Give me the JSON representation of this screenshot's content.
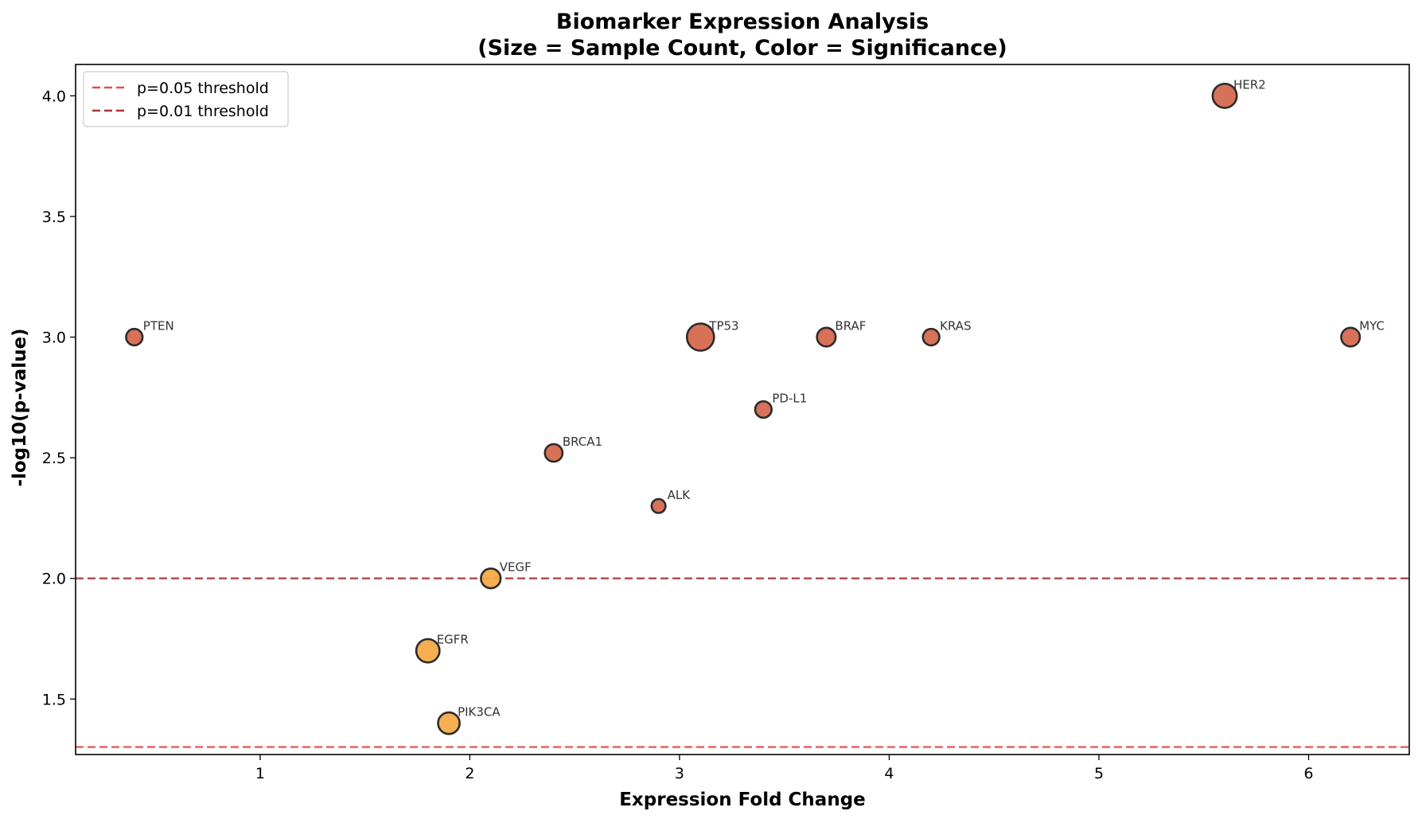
{
  "chart_data": {
    "type": "scatter",
    "title_line1": "Biomarker Expression Analysis",
    "title_line2": "(Size = Sample Count, Color = Significance)",
    "xlabel": "Expression Fold Change",
    "ylabel": "-log10(p-value)",
    "xlim": [
      0.12,
      6.48
    ],
    "ylim": [
      1.27,
      4.13
    ],
    "xticks": [
      1,
      2,
      3,
      4,
      5,
      6
    ],
    "xtick_labels": [
      "1",
      "2",
      "3",
      "4",
      "5",
      "6"
    ],
    "yticks": [
      1.5,
      2.0,
      2.5,
      3.0,
      3.5,
      4.0
    ],
    "ytick_labels": [
      "1.5",
      "2.0",
      "2.5",
      "3.0",
      "3.5",
      "4.0"
    ],
    "grid": false,
    "legend_placement": "top-left",
    "significant_color": "#d4654a",
    "moderate_color": "#f5a742",
    "edge_color": "#2b2b2b",
    "points": [
      {
        "label": "PTEN",
        "x": 0.4,
        "y": 3.0,
        "samples": 35,
        "group": "significant"
      },
      {
        "label": "TP53",
        "x": 3.1,
        "y": 3.0,
        "samples": 95,
        "group": "significant"
      },
      {
        "label": "BRAF",
        "x": 3.7,
        "y": 3.0,
        "samples": 45,
        "group": "significant"
      },
      {
        "label": "KRAS",
        "x": 4.2,
        "y": 3.0,
        "samples": 35,
        "group": "significant"
      },
      {
        "label": "MYC",
        "x": 6.2,
        "y": 3.0,
        "samples": 45,
        "group": "significant"
      },
      {
        "label": "HER2",
        "x": 5.6,
        "y": 4.0,
        "samples": 75,
        "group": "significant"
      },
      {
        "label": "PD-L1",
        "x": 3.4,
        "y": 2.7,
        "samples": 35,
        "group": "significant"
      },
      {
        "label": "BRCA1",
        "x": 2.4,
        "y": 2.52,
        "samples": 40,
        "group": "significant"
      },
      {
        "label": "ALK",
        "x": 2.9,
        "y": 2.3,
        "samples": 25,
        "group": "significant"
      },
      {
        "label": "VEGF",
        "x": 2.1,
        "y": 2.0,
        "samples": 50,
        "group": "moderate"
      },
      {
        "label": "EGFR",
        "x": 1.8,
        "y": 1.7,
        "samples": 70,
        "group": "moderate"
      },
      {
        "label": "PIK3CA",
        "x": 1.9,
        "y": 1.4,
        "samples": 60,
        "group": "moderate"
      }
    ],
    "thresholds": [
      {
        "name": "p=0.05 threshold",
        "y": 1.301,
        "color": "#e84a4a"
      },
      {
        "name": "p=0.01 threshold",
        "y": 2.0,
        "color": "#a83232"
      }
    ]
  }
}
